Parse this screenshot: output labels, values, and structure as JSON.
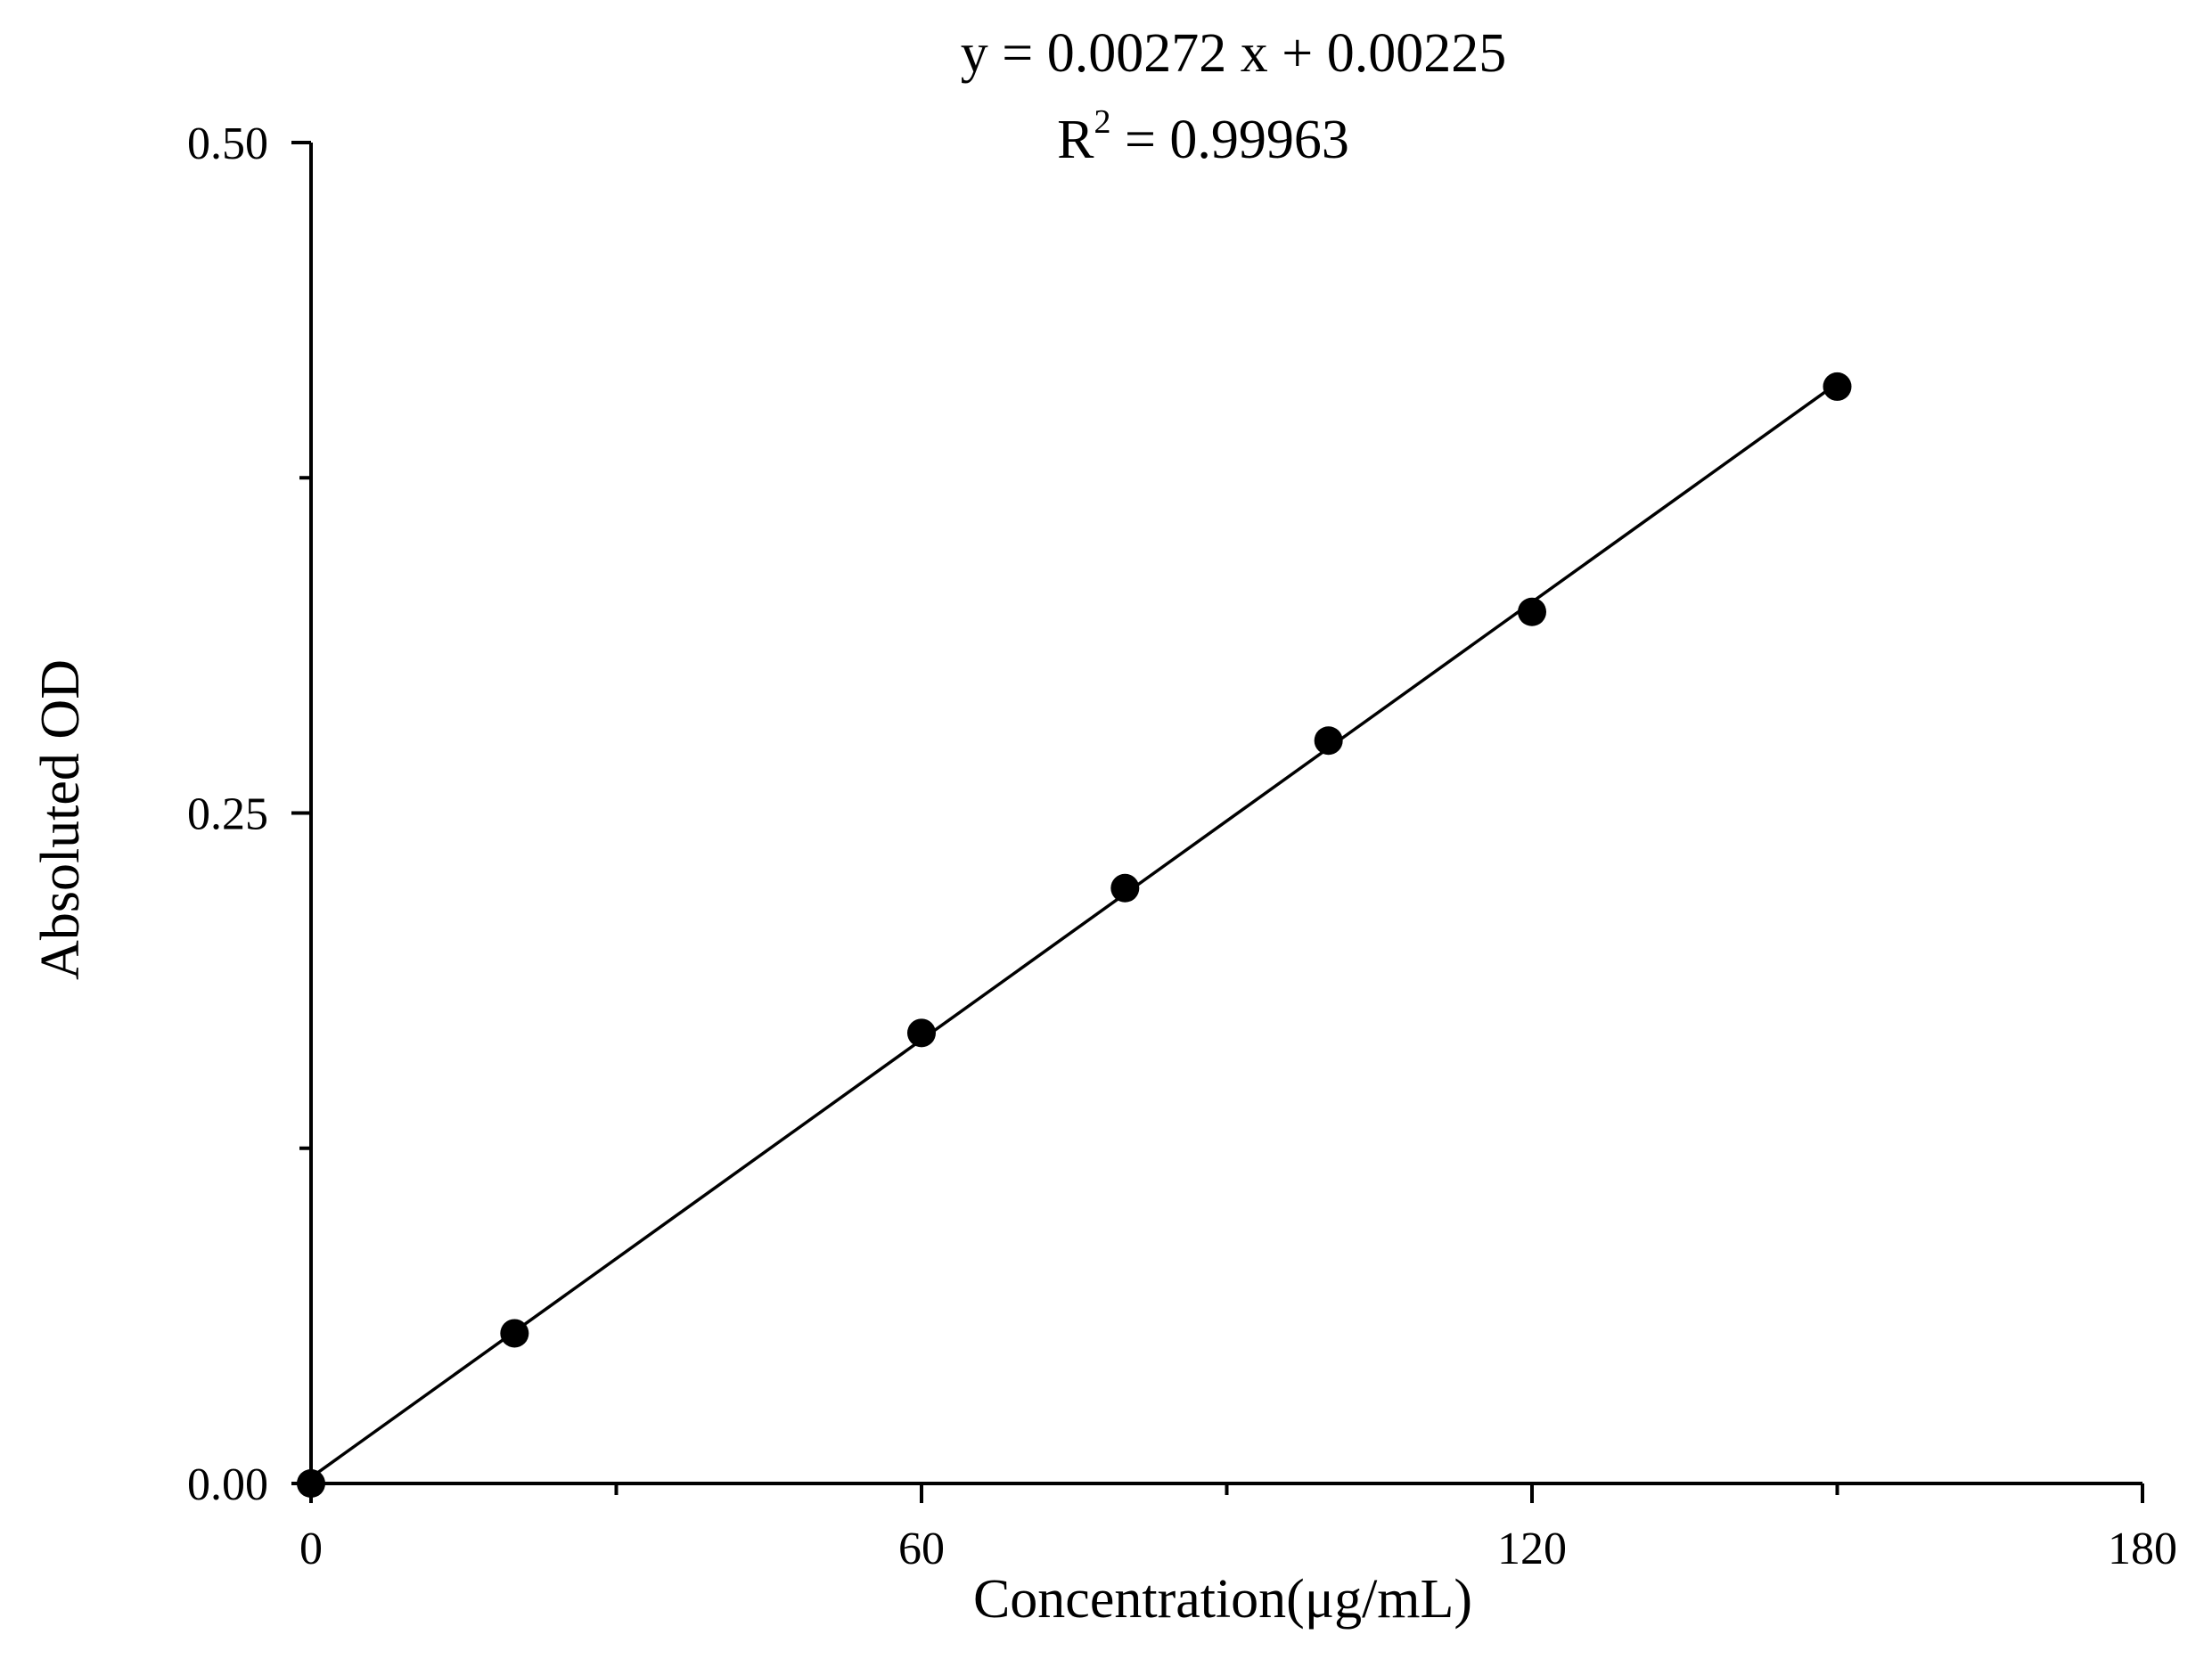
{
  "chart_data": {
    "type": "scatter",
    "title": "",
    "annotations": {
      "equation": "y = 0.00272 x + 0.00225",
      "r2_base": "R",
      "r2_exp": "2",
      "r2_value": " = 0.99963"
    },
    "xlabel": "Concentration(μg/mL)",
    "ylabel": "Absoluted OD",
    "xlim": [
      0,
      180
    ],
    "ylim": [
      0,
      0.5
    ],
    "x_ticks": [
      {
        "value": 0,
        "label": "0"
      },
      {
        "value": 60,
        "label": "60"
      },
      {
        "value": 120,
        "label": "120"
      },
      {
        "value": 180,
        "label": "180"
      }
    ],
    "x_minor_ticks": [
      30,
      90,
      150
    ],
    "y_ticks": [
      {
        "value": 0,
        "label": "0.00"
      },
      {
        "value": 0.25,
        "label": "0.25"
      },
      {
        "value": 0.5,
        "label": "0.50"
      }
    ],
    "y_minor_ticks": [
      0.125,
      0.375
    ],
    "series": [
      {
        "points": [
          {
            "x": 0,
            "y": 0.0
          },
          {
            "x": 20,
            "y": 0.056
          },
          {
            "x": 60,
            "y": 0.168
          },
          {
            "x": 80,
            "y": 0.222
          },
          {
            "x": 100,
            "y": 0.277
          },
          {
            "x": 120,
            "y": 0.325
          },
          {
            "x": 150,
            "y": 0.409
          }
        ],
        "marker": "filled-circle",
        "color": "#000000"
      }
    ],
    "fit_line": {
      "slope": 0.00272,
      "intercept": 0.00225,
      "x_range": [
        0,
        150
      ],
      "color": "#000000"
    },
    "grid": false,
    "legend": "none"
  }
}
